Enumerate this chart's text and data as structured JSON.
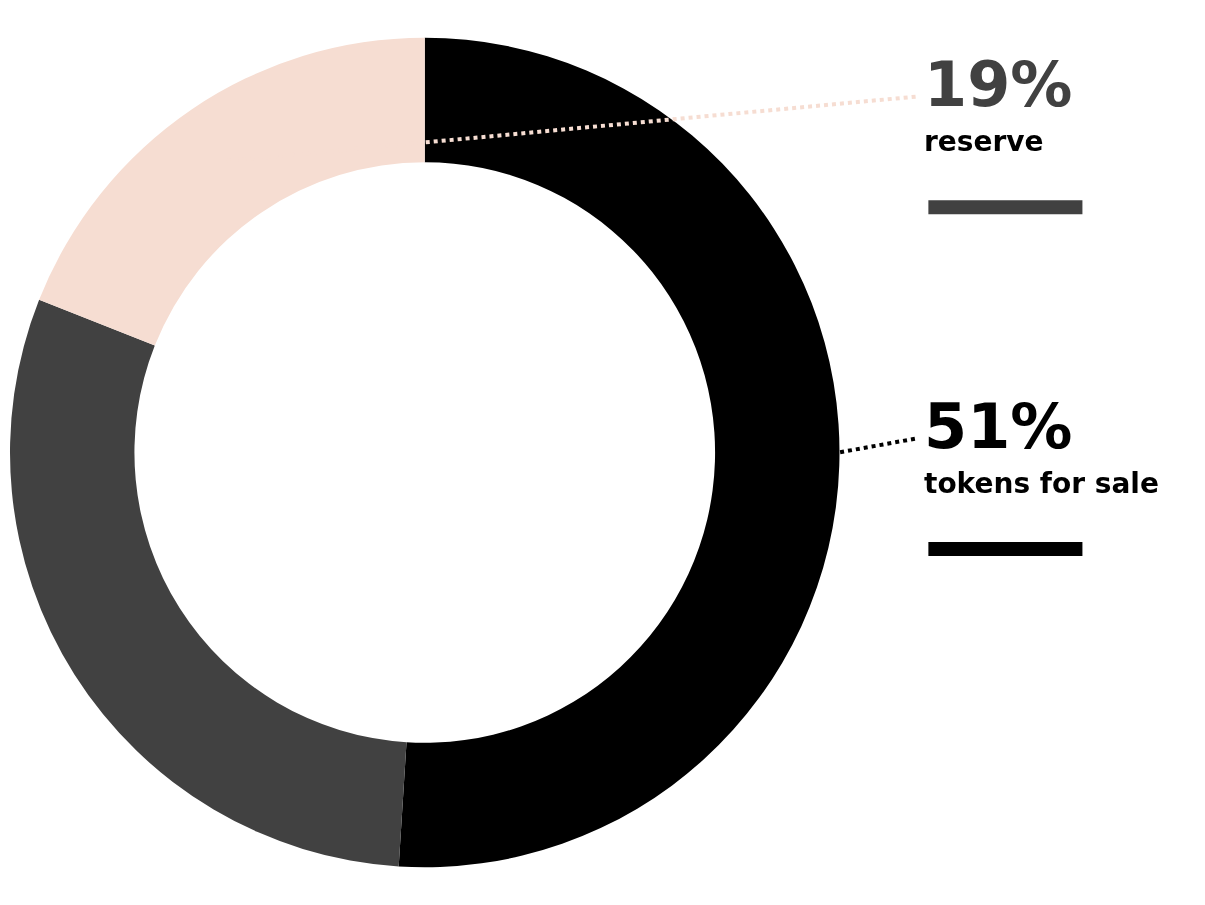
{
  "chart_data": {
    "type": "donut",
    "categories": [
      "tokens for sale",
      null,
      "reserve"
    ],
    "values": [
      51,
      30,
      19
    ],
    "colors": [
      "#000000",
      "#414141",
      "#f6ddd2"
    ],
    "value_labels": [
      "51%",
      null,
      "19%"
    ]
  }
}
